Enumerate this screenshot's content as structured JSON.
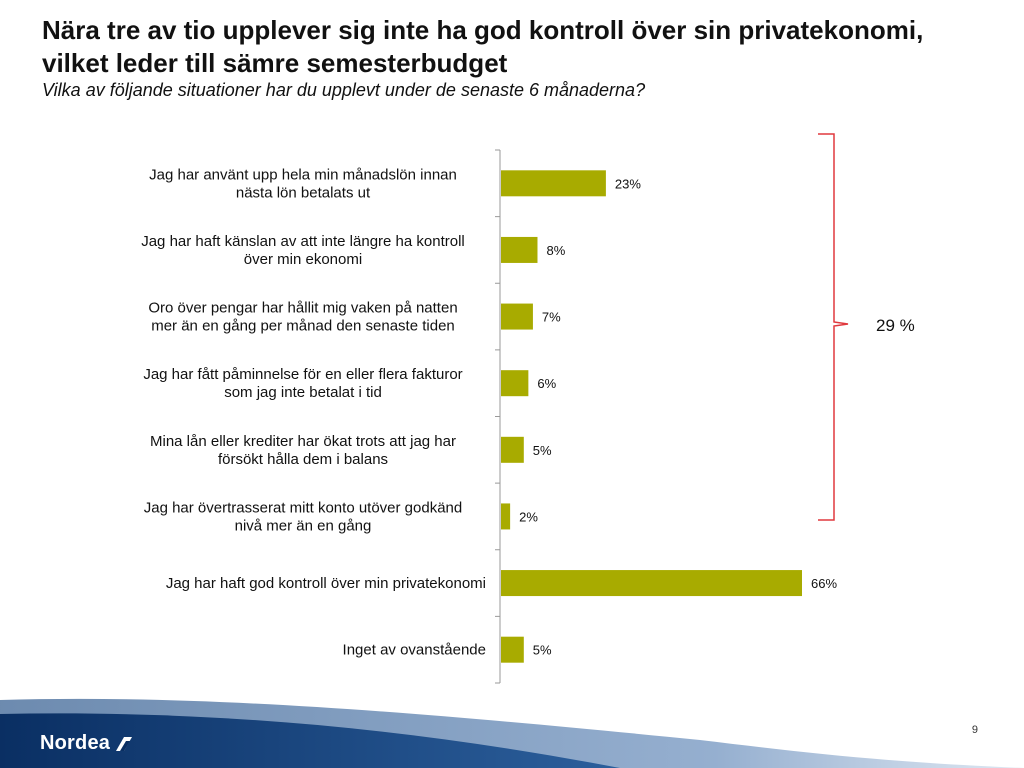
{
  "slide": {
    "title": "Nära tre av tio upplever sig inte ha god kontroll över sin privatekonomi, vilket leder till sämre semesterbudget",
    "subtitle": "Vilka av följande situationer har du upplevt under de senaste 6 månaderna?",
    "page_number": "9",
    "brand": "Nordea"
  },
  "brace": {
    "label": "29 %",
    "color": "#e0393e"
  },
  "colors": {
    "bar": "#a8ab00",
    "axis": "#999999"
  },
  "chart_data": {
    "type": "bar",
    "orientation": "horizontal",
    "title": "",
    "xlabel": "",
    "ylabel": "",
    "xlim": [
      0,
      66
    ],
    "categories": [
      [
        "Jag har använt upp hela min månadslön innan",
        "nästa lön betalats ut"
      ],
      [
        "Jag har haft känslan av att inte längre ha kontroll",
        "över min ekonomi"
      ],
      [
        "Oro över pengar har hållit mig vaken på natten",
        "mer än en gång per månad den senaste tiden"
      ],
      [
        "Jag har fått påminnelse för en eller flera fakturor",
        "som jag inte betalat i tid"
      ],
      [
        "Mina lån eller krediter har ökat trots att jag har",
        "försökt hålla dem i balans"
      ],
      [
        "Jag har övertrasserat mitt konto utöver godkänd",
        "nivå mer än en gång"
      ],
      [
        "Jag har haft god kontroll över min privatekonomi"
      ],
      [
        "Inget av ovanstående"
      ]
    ],
    "values": [
      23,
      8,
      7,
      6,
      5,
      2,
      66,
      5
    ],
    "value_labels": [
      "23%",
      "8%",
      "7%",
      "6%",
      "5%",
      "2%",
      "66%",
      "5%"
    ]
  }
}
